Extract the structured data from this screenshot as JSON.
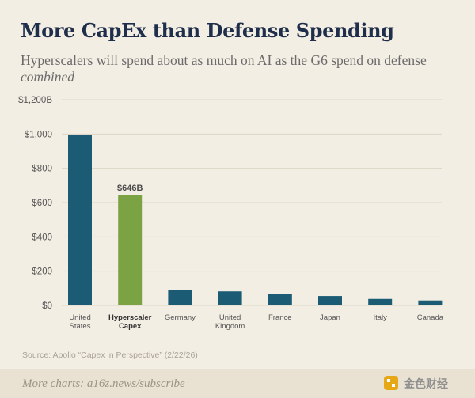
{
  "header": {
    "title": "More CapEx than Defense Spending",
    "subtitle_main": "Hyperscalers will spend about as much on AI as the G6 spend on defense ",
    "subtitle_em": "combined"
  },
  "source": "Source: Apollo “Capex in Perspective” (2/22/26)",
  "footer": {
    "text": "More charts: a16z.news/subscribe",
    "brand": "金色财经"
  },
  "colors": {
    "bar": "#1b5c74",
    "highlight": "#7ba343",
    "grid": "#dcd6c6",
    "axis_text": "#555555",
    "title": "#1f2e4a"
  },
  "chart_data": {
    "type": "bar",
    "categories": [
      [
        "United",
        "States"
      ],
      [
        "Hyperscaler",
        "Capex"
      ],
      [
        "Germany"
      ],
      [
        "United",
        "Kingdom"
      ],
      [
        "France"
      ],
      [
        "Japan"
      ],
      [
        "Italy"
      ],
      [
        "Canada"
      ]
    ],
    "values": [
      997,
      646,
      88,
      82,
      66,
      55,
      38,
      29
    ],
    "highlight_index": 1,
    "data_labels": [
      {
        "index": 1,
        "text": "$646B"
      }
    ],
    "yticks": [
      0,
      200,
      400,
      600,
      800,
      1000,
      1200
    ],
    "ytick_labels": [
      "$0",
      "$200",
      "$400",
      "$600",
      "$800",
      "$1,000",
      "$1,200B"
    ],
    "ylim": [
      0,
      1200
    ],
    "grid": true
  }
}
